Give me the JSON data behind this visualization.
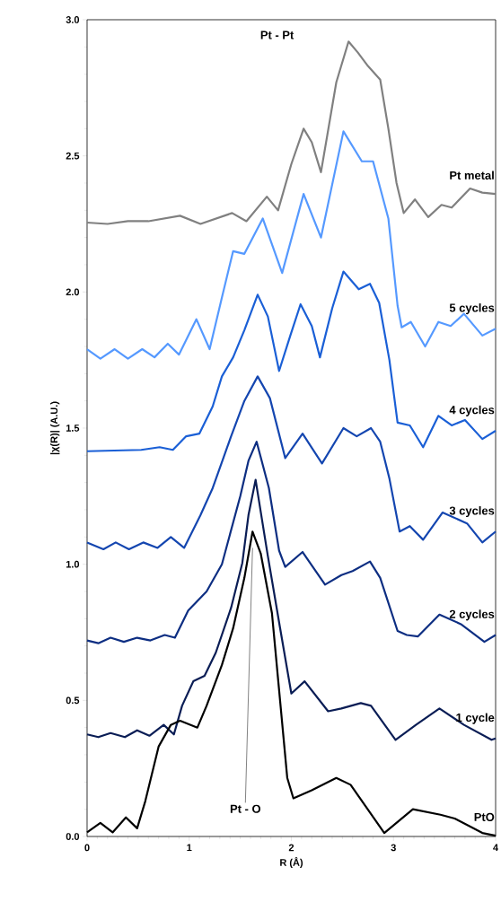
{
  "chart_data": {
    "type": "line",
    "xlabel": "R (Å)",
    "ylabel": "|χ(R)| (A.U.)",
    "xlim": [
      0,
      4
    ],
    "ylim": [
      0,
      3
    ],
    "xticks": [
      0,
      1,
      2,
      3,
      4
    ],
    "yticks": [
      {
        "value": 0,
        "label": "0.0"
      },
      {
        "value": 0.5,
        "label": "0.5"
      },
      {
        "value": 1,
        "label": "1.0"
      },
      {
        "value": 1.5,
        "label": "1.5"
      },
      {
        "value": 2,
        "label": "2.0"
      },
      {
        "value": 2.5,
        "label": "2.5"
      },
      {
        "value": 3,
        "label": "3.0"
      }
    ],
    "grid": false,
    "legend": false,
    "marker": "none",
    "line_style": "solid",
    "annotations": [
      "Pt - Pt",
      {
        "text": "Pt - O",
        "x": 1.62,
        "y": 1.06
      }
    ],
    "series": [
      {
        "name": "Pt metal",
        "color": "#808080",
        "x": [
          0,
          0.2,
          0.4,
          0.6,
          0.91,
          1.11,
          1.42,
          1.56,
          1.76,
          1.87,
          2.0,
          2.12,
          2.2,
          2.29,
          2.44,
          2.56,
          2.65,
          2.75,
          2.87,
          2.95,
          3.03,
          3.1,
          3.21,
          3.34,
          3.47,
          3.57,
          3.75,
          3.87,
          4.0
        ],
        "values": [
          2.255,
          2.25,
          2.26,
          2.26,
          2.28,
          2.25,
          2.29,
          2.26,
          2.35,
          2.3,
          2.47,
          2.6,
          2.55,
          2.44,
          2.77,
          2.92,
          2.88,
          2.83,
          2.78,
          2.6,
          2.4,
          2.29,
          2.34,
          2.275,
          2.32,
          2.31,
          2.38,
          2.365,
          2.36
        ]
      },
      {
        "name": "5 cycles",
        "color": "#5599ff",
        "x": [
          0,
          0.13,
          0.27,
          0.4,
          0.54,
          0.66,
          0.79,
          0.9,
          1.07,
          1.2,
          1.32,
          1.43,
          1.54,
          1.72,
          1.91,
          2.12,
          2.29,
          2.51,
          2.69,
          2.8,
          2.95,
          3.04,
          3.08,
          3.17,
          3.31,
          3.44,
          3.56,
          3.69,
          3.87,
          4.0
        ],
        "values": [
          1.79,
          1.755,
          1.79,
          1.755,
          1.79,
          1.76,
          1.81,
          1.77,
          1.9,
          1.79,
          1.98,
          2.15,
          2.14,
          2.27,
          2.07,
          2.36,
          2.2,
          2.59,
          2.48,
          2.48,
          2.27,
          1.95,
          1.87,
          1.89,
          1.8,
          1.89,
          1.875,
          1.92,
          1.84,
          1.865
        ]
      },
      {
        "name": "4 cycles",
        "color": "#1a5fd6",
        "x": [
          0,
          0.53,
          0.71,
          0.84,
          0.97,
          1.1,
          1.23,
          1.32,
          1.43,
          1.54,
          1.67,
          1.77,
          1.88,
          1.99,
          2.09,
          2.2,
          2.28,
          2.4,
          2.51,
          2.66,
          2.77,
          2.86,
          2.96,
          3.04,
          3.16,
          3.29,
          3.44,
          3.57,
          3.7,
          3.87,
          4.0
        ],
        "values": [
          1.415,
          1.42,
          1.43,
          1.42,
          1.47,
          1.48,
          1.58,
          1.69,
          1.76,
          1.86,
          1.99,
          1.91,
          1.71,
          1.84,
          1.955,
          1.875,
          1.76,
          1.94,
          2.075,
          2.01,
          2.03,
          1.96,
          1.75,
          1.52,
          1.51,
          1.43,
          1.545,
          1.51,
          1.53,
          1.46,
          1.49
        ]
      },
      {
        "name": "3 cycles",
        "color": "#1446b0",
        "x": [
          0,
          0.16,
          0.28,
          0.41,
          0.55,
          0.69,
          0.82,
          0.95,
          1.11,
          1.23,
          1.41,
          1.54,
          1.67,
          1.79,
          1.94,
          2.11,
          2.3,
          2.51,
          2.64,
          2.78,
          2.87,
          2.96,
          3.06,
          3.16,
          3.29,
          3.48,
          3.72,
          3.87,
          4.0
        ],
        "values": [
          1.08,
          1.055,
          1.08,
          1.055,
          1.08,
          1.06,
          1.1,
          1.06,
          1.18,
          1.28,
          1.47,
          1.6,
          1.69,
          1.61,
          1.39,
          1.48,
          1.37,
          1.5,
          1.47,
          1.5,
          1.45,
          1.315,
          1.12,
          1.14,
          1.09,
          1.19,
          1.15,
          1.08,
          1.12
        ]
      },
      {
        "name": "2 cycles",
        "color": "#0d2e82",
        "x": [
          0,
          0.11,
          0.23,
          0.36,
          0.49,
          0.62,
          0.76,
          0.86,
          0.99,
          1.17,
          1.32,
          1.5,
          1.58,
          1.66,
          1.78,
          1.88,
          1.94,
          2.11,
          2.33,
          2.49,
          2.6,
          2.77,
          2.87,
          3.04,
          3.13,
          3.24,
          3.45,
          3.66,
          3.89,
          4.0
        ],
        "values": [
          0.72,
          0.71,
          0.73,
          0.715,
          0.73,
          0.72,
          0.74,
          0.73,
          0.83,
          0.9,
          1.0,
          1.25,
          1.38,
          1.45,
          1.28,
          1.05,
          0.99,
          1.045,
          0.925,
          0.96,
          0.975,
          1.01,
          0.95,
          0.755,
          0.74,
          0.735,
          0.815,
          0.78,
          0.715,
          0.74
        ]
      },
      {
        "name": "1 cycle",
        "color": "#0a1d55",
        "x": [
          0,
          0.11,
          0.23,
          0.37,
          0.49,
          0.61,
          0.75,
          0.85,
          0.93,
          1.04,
          1.15,
          1.26,
          1.41,
          1.52,
          1.58,
          1.65,
          1.77,
          1.89,
          2.0,
          2.13,
          2.36,
          2.49,
          2.68,
          2.78,
          3.02,
          3.22,
          3.45,
          3.69,
          3.96,
          4.0
        ],
        "values": [
          0.375,
          0.365,
          0.38,
          0.365,
          0.39,
          0.37,
          0.41,
          0.375,
          0.48,
          0.57,
          0.59,
          0.675,
          0.84,
          1.005,
          1.18,
          1.31,
          1.03,
          0.765,
          0.525,
          0.57,
          0.46,
          0.47,
          0.49,
          0.48,
          0.355,
          0.41,
          0.47,
          0.41,
          0.355,
          0.36
        ]
      },
      {
        "name": "PtO",
        "color": "#000000",
        "x": [
          0,
          0.13,
          0.25,
          0.38,
          0.49,
          0.57,
          0.7,
          0.82,
          0.91,
          1.08,
          1.17,
          1.32,
          1.43,
          1.54,
          1.62,
          1.7,
          1.81,
          1.96,
          2.02,
          2.2,
          2.44,
          2.58,
          2.91,
          3.19,
          3.46,
          3.6,
          3.87,
          4.0
        ],
        "values": [
          0.015,
          0.05,
          0.015,
          0.07,
          0.03,
          0.13,
          0.33,
          0.41,
          0.425,
          0.4,
          0.48,
          0.63,
          0.765,
          0.95,
          1.12,
          1.04,
          0.82,
          0.215,
          0.14,
          0.17,
          0.215,
          0.19,
          0.013,
          0.1,
          0.08,
          0.066,
          0.013,
          0.003
        ]
      }
    ]
  }
}
